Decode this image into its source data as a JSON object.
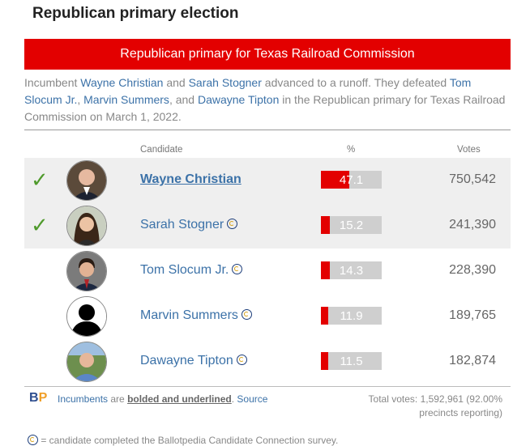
{
  "title": "Republican primary election",
  "banner": "Republican primary for Texas Railroad Commission",
  "intro": {
    "p1": "Incumbent ",
    "l1": "Wayne Christian",
    "p2": " and ",
    "l2": "Sarah Stogner",
    "p3": " advanced to a runoff. They defeated ",
    "l3": "Tom Slocum Jr.",
    "p4": ", ",
    "l4": "Marvin Summers",
    "p5": ", and ",
    "l5": "Dawayne Tipton",
    "p6": " in the Republican primary for Texas Railroad Commission on March 1, 2022."
  },
  "headers": {
    "candidate": "Candidate",
    "percent": "%",
    "votes": "Votes"
  },
  "candidates": [
    {
      "name": "Wayne Christian",
      "percent": "47.1",
      "pct": 47.1,
      "votes": "750,542",
      "winner": true,
      "advanced": true,
      "incumbent": true
    },
    {
      "name": "Sarah Stogner",
      "percent": "15.2",
      "pct": 15.2,
      "votes": "241,390",
      "winner": false,
      "advanced": true,
      "incumbent": false
    },
    {
      "name": "Tom Slocum Jr.",
      "percent": "14.3",
      "pct": 14.3,
      "votes": "228,390",
      "winner": false,
      "advanced": false,
      "incumbent": false
    },
    {
      "name": "Marvin Summers",
      "percent": "11.9",
      "pct": 11.9,
      "votes": "189,765",
      "winner": false,
      "advanced": false,
      "incumbent": false
    },
    {
      "name": "Dawayne Tipton",
      "percent": "11.5",
      "pct": 11.5,
      "votes": "182,874",
      "winner": false,
      "advanced": false,
      "incumbent": false
    }
  ],
  "footer": {
    "logo_b": "B",
    "logo_p": "P",
    "incumbents": "Incumbents",
    "are": " are ",
    "bolded": "bolded and underlined",
    "period": ". ",
    "source": "Source",
    "total": "Total votes: 1,592,961 (92.00% precincts reporting)",
    "cut": "= candidate completed the Ballotpedia Candidate Connection survey."
  },
  "colors": {
    "accent": "#e30000",
    "link": "#3c72a8",
    "check": "#4f9a2c"
  }
}
